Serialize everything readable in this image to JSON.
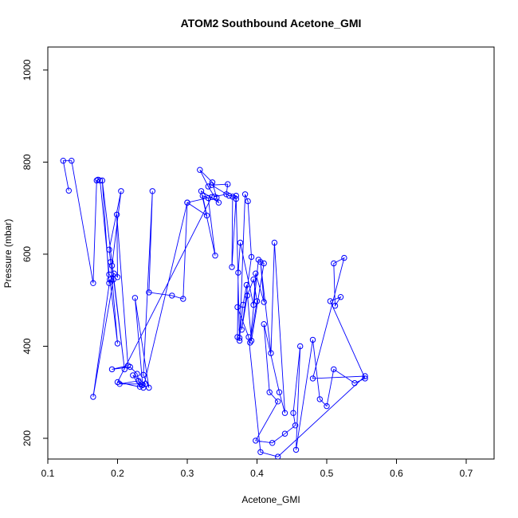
{
  "chart_data": {
    "type": "line",
    "title": "ATOM2 Southbound Acetone_GMI",
    "xlabel": "Acetone_GMI",
    "ylabel": "Pressure (mbar)",
    "xlim": [
      0.1,
      0.74
    ],
    "ylim": [
      1050,
      155
    ],
    "y_reversed": true,
    "x_ticks": [
      0.1,
      0.2,
      0.3,
      0.4,
      0.5,
      0.6,
      0.7
    ],
    "x_tick_labels": [
      "0.1",
      "0.2",
      "0.3",
      "0.4",
      "0.5",
      "0.6",
      "0.7"
    ],
    "y_ticks": [
      200,
      400,
      600,
      800,
      1000
    ],
    "y_tick_labels": [
      "200",
      "400",
      "600",
      "800",
      "1000"
    ],
    "grid": false,
    "legend": "none",
    "colors": {
      "series": "#0000ff",
      "axes": "#000000"
    },
    "series": [
      {
        "x": [
          0.13,
          0.122,
          0.134,
          0.165,
          0.17,
          0.172,
          0.175,
          0.188,
          0.194,
          0.165,
          0.189,
          0.2,
          0.19,
          0.188,
          0.205,
          0.192,
          0.21,
          0.178,
          0.188,
          0.195,
          0.2,
          0.199,
          0.215,
          0.192,
          0.218,
          0.228,
          0.232,
          0.222,
          0.24,
          0.203,
          0.23,
          0.236,
          0.225,
          0.245,
          0.237,
          0.25,
          0.245,
          0.278,
          0.294,
          0.3,
          0.335,
          0.2,
          0.237,
          0.3,
          0.328,
          0.322,
          0.33,
          0.34,
          0.32,
          0.345,
          0.342,
          0.336,
          0.318,
          0.33,
          0.339,
          0.356,
          0.358,
          0.335,
          0.36,
          0.37,
          0.364,
          0.365,
          0.37,
          0.375,
          0.383,
          0.387,
          0.392,
          0.378,
          0.386,
          0.395,
          0.4,
          0.39,
          0.402,
          0.41,
          0.392,
          0.385,
          0.38,
          0.375,
          0.372,
          0.373,
          0.376,
          0.395,
          0.398,
          0.41,
          0.405,
          0.42,
          0.425,
          0.44,
          0.432,
          0.41,
          0.418,
          0.43,
          0.398,
          0.422,
          0.44,
          0.455,
          0.452,
          0.462,
          0.456,
          0.48,
          0.49,
          0.5,
          0.51,
          0.54,
          0.555,
          0.505,
          0.52,
          0.512,
          0.51,
          0.525,
          0.48,
          0.555,
          0.43,
          0.405,
          0.388,
          0.372
        ],
        "y": [
          738,
          803,
          803,
          537,
          760,
          762,
          760,
          556,
          545,
          290,
          545,
          406,
          583,
          610,
          737,
          575,
          350,
          760,
          537,
          558,
          550,
          686,
          358,
          350,
          355,
          340,
          312,
          337,
          318,
          318,
          325,
          316,
          505,
          310,
          338,
          737,
          517,
          510,
          503,
          712,
          724,
          322,
          310,
          712,
          684,
          727,
          722,
          597,
          737,
          712,
          723,
          756,
          783,
          747,
          725,
          730,
          752,
          750,
          727,
          727,
          572,
          725,
          720,
          412,
          730,
          715,
          594,
          436,
          510,
          545,
          498,
          408,
          588,
          580,
          412,
          533,
          490,
          418,
          420,
          560,
          625,
          490,
          558,
          496,
          583,
          385,
          625,
          255,
          300,
          448,
          300,
          280,
          195,
          190,
          210,
          228,
          255,
          400,
          175,
          414,
          285,
          270,
          350,
          320,
          330,
          498,
          507,
          488,
          580,
          592,
          330,
          335,
          160,
          170,
          420,
          485
        ]
      }
    ]
  }
}
